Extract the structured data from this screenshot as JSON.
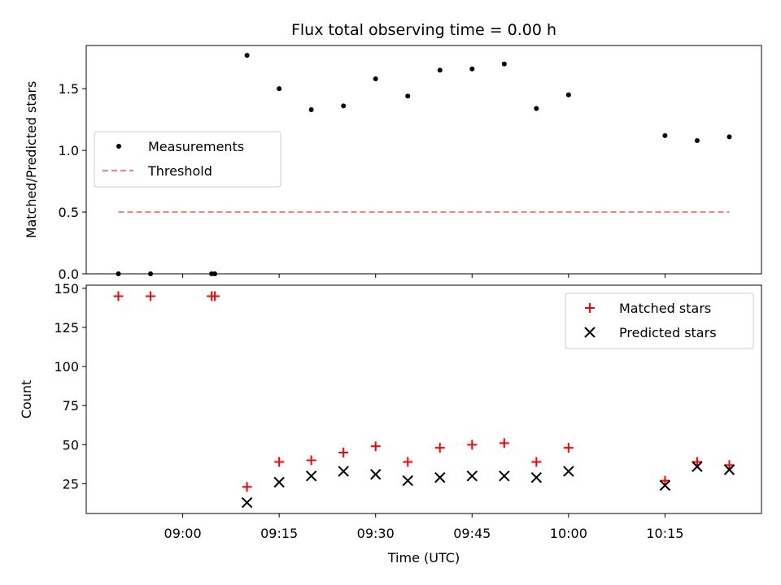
{
  "chart_data": [
    {
      "type": "scatter",
      "title": "Flux total observing time = 0.00 h",
      "xlabel": "",
      "ylabel": "Matched/Predicted stars",
      "ylim": [
        0.0,
        1.85
      ],
      "yticks": [
        0.0,
        0.5,
        1.0,
        1.5
      ],
      "xticks": [
        "09:00",
        "09:15",
        "09:30",
        "09:45",
        "10:00",
        "10:15"
      ],
      "legend_position": "center-left",
      "grid": false,
      "series": [
        {
          "name": "Measurements",
          "marker": "dot",
          "color": "#000000",
          "x": [
            "08:50",
            "08:55",
            "09:04:30",
            "09:05",
            "09:10",
            "09:15",
            "09:20",
            "09:25",
            "09:30",
            "09:35",
            "09:40",
            "09:45",
            "09:50",
            "09:55",
            "10:00",
            "10:15",
            "10:20",
            "10:25"
          ],
          "y": [
            0.0,
            0.0,
            0.0,
            0.0,
            1.77,
            1.5,
            1.33,
            1.36,
            1.58,
            1.44,
            1.65,
            1.66,
            1.7,
            1.34,
            1.45,
            1.12,
            1.08,
            1.11
          ]
        },
        {
          "name": "Threshold",
          "style": "dashed-line",
          "color": "#ff7f7f",
          "x": [
            "08:50",
            "10:25"
          ],
          "y": [
            0.5,
            0.5
          ]
        }
      ]
    },
    {
      "type": "scatter",
      "title": "",
      "xlabel": "Time (UTC)",
      "ylabel": "Count",
      "ylim": [
        6,
        152
      ],
      "yticks": [
        25,
        50,
        75,
        100,
        125,
        150
      ],
      "xticks": [
        "09:00",
        "09:15",
        "09:30",
        "09:45",
        "10:00",
        "10:15"
      ],
      "legend_position": "top-right",
      "grid": false,
      "series": [
        {
          "name": "Matched stars",
          "marker": "plus",
          "color": "#ff0000",
          "x": [
            "08:50",
            "08:55",
            "09:04:30",
            "09:05",
            "09:10",
            "09:15",
            "09:20",
            "09:25",
            "09:30",
            "09:35",
            "09:40",
            "09:45",
            "09:50",
            "09:55",
            "10:00",
            "10:15",
            "10:20",
            "10:25"
          ],
          "y": [
            145,
            145,
            145,
            145,
            23,
            39,
            40,
            45,
            49,
            39,
            48,
            50,
            51,
            39,
            48,
            27,
            39,
            37
          ]
        },
        {
          "name": "Predicted stars",
          "marker": "x",
          "color": "#000000",
          "x": [
            "09:10",
            "09:15",
            "09:20",
            "09:25",
            "09:30",
            "09:35",
            "09:40",
            "09:45",
            "09:50",
            "09:55",
            "10:00",
            "10:15",
            "10:20",
            "10:25"
          ],
          "y": [
            13,
            26,
            30,
            33,
            31,
            27,
            29,
            30,
            30,
            29,
            33,
            24,
            36,
            34
          ]
        }
      ]
    }
  ]
}
